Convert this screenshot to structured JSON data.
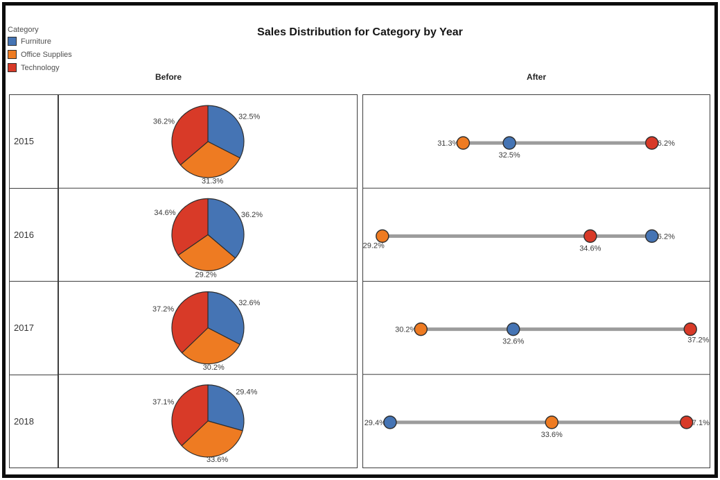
{
  "chart_data": {
    "type": [
      "pie",
      "dumbbell"
    ],
    "title": "Sales Distribution for Category by Year",
    "legend_title": "Category",
    "panels": [
      "Before",
      "After"
    ],
    "series": [
      {
        "name": "Furniture",
        "color": "#4574b4"
      },
      {
        "name": "Office Supplies",
        "color": "#ee7b22"
      },
      {
        "name": "Technology",
        "color": "#d83a28"
      }
    ],
    "years": [
      "2015",
      "2016",
      "2017",
      "2018"
    ],
    "values_pct": {
      "2015": [
        32.5,
        31.3,
        36.2
      ],
      "2016": [
        36.2,
        29.2,
        34.6
      ],
      "2017": [
        32.6,
        30.2,
        37.2
      ],
      "2018": [
        29.4,
        33.6,
        37.1
      ]
    },
    "labels": {
      "2015": [
        "32.5%",
        "31.3%",
        "36.2%"
      ],
      "2016": [
        "36.2%",
        "29.2%",
        "34.6%"
      ],
      "2017": [
        "32.6%",
        "30.2%",
        "37.2%"
      ],
      "2018": [
        "29.4%",
        "33.6%",
        "37.1%"
      ]
    },
    "after_label_placement": {
      "2015": [
        "below",
        "left",
        "right"
      ],
      "2016": [
        "right",
        "below-left",
        "below"
      ],
      "2017": [
        "below",
        "left",
        "below-right"
      ],
      "2018": [
        "left",
        "below",
        "right"
      ]
    },
    "after_axis": {
      "min": 28.7,
      "max": 37.7,
      "unit": "%"
    },
    "pie_start_angle_deg": 0,
    "pie_direction": "clockwise",
    "line_color": "#9c9c9c",
    "label_color": "#3a3a3a",
    "marker_outline": "#2d2d2d",
    "grid_color": "#3c3c3c"
  }
}
